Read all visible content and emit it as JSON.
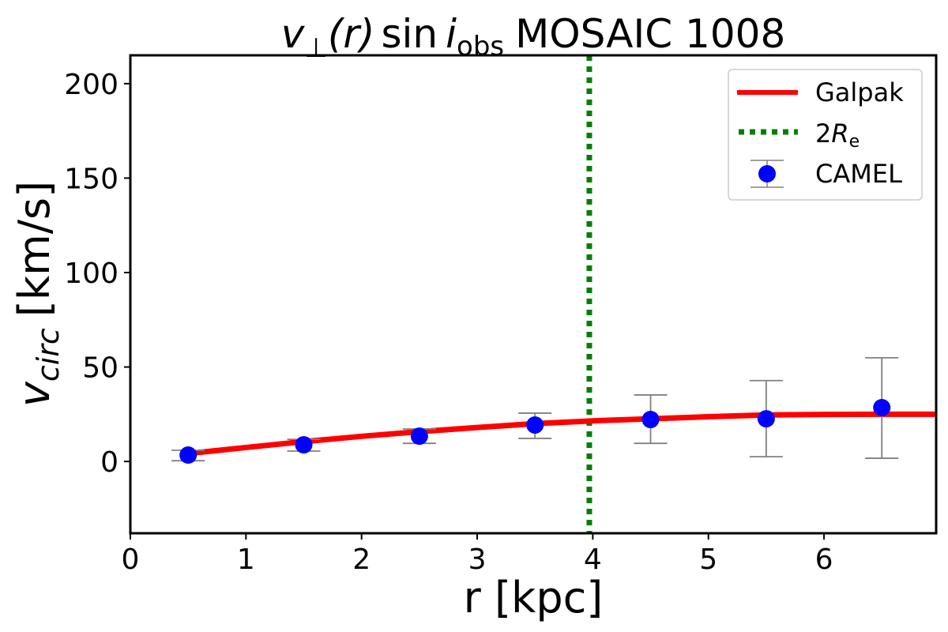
{
  "chart_data": {
    "type": "line",
    "title": {
      "symbol": "v",
      "subscript_symbol": "⊥",
      "argument": "(r)",
      "function": "sin",
      "incl": "i",
      "incl_sub": "obs",
      "text": "MOSAIC 1008"
    },
    "xlabel": "r [kpc]",
    "ylabel": {
      "symbol": "v",
      "subscript": "circ",
      "unit": "[km/s]"
    },
    "xlim": [
      0,
      6.97
    ],
    "ylim": [
      -38,
      215
    ],
    "xticks": [
      0,
      1,
      2,
      3,
      4,
      5,
      6
    ],
    "yticks": [
      0,
      50,
      100,
      150,
      200
    ],
    "grid": false,
    "legend_placement": "top-right",
    "series": [
      {
        "name": "Galpak",
        "kind": "line",
        "color": "#ff0000",
        "x": [
          0.5,
          1.0,
          1.5,
          2.0,
          2.5,
          3.0,
          3.5,
          4.0,
          4.5,
          5.0,
          5.5,
          6.0,
          6.5,
          6.97
        ],
        "y": [
          4.2,
          7.4,
          10.5,
          13.3,
          15.8,
          18.0,
          20.0,
          21.5,
          22.6,
          23.7,
          24.6,
          24.9,
          25.0,
          25.0
        ]
      },
      {
        "name": "CAMEL",
        "kind": "errorbar",
        "color": "#0000ff",
        "errorbar_color": "#808080",
        "x": [
          0.5,
          1.5,
          2.5,
          3.5,
          4.5,
          5.5,
          6.5
        ],
        "y": [
          3.4,
          8.8,
          13.4,
          19.3,
          22.2,
          22.6,
          28.5
        ],
        "y_low": [
          0.4,
          5.5,
          9.6,
          12.2,
          9.6,
          2.5,
          1.7
        ],
        "y_high": [
          5.9,
          11.7,
          17.2,
          25.6,
          35.2,
          42.8,
          54.9
        ]
      },
      {
        "name": "2R_e",
        "label_main": "2",
        "label_symbol": "R",
        "label_sub": "e",
        "kind": "vline",
        "color": "#008000",
        "x": 3.97
      }
    ]
  }
}
